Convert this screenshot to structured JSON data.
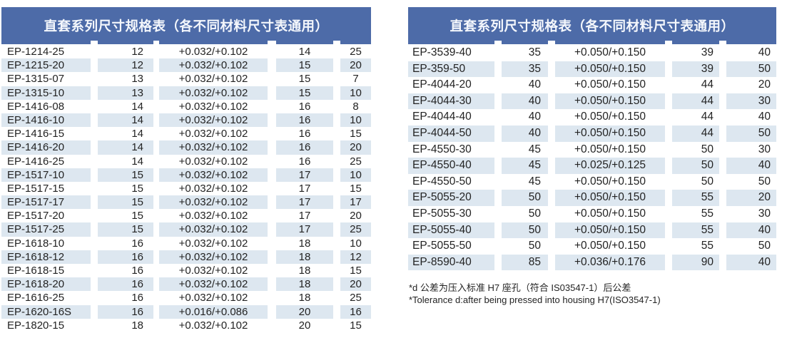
{
  "colors": {
    "header_bg": "#4d6ba8",
    "header_text": "#f4f7fc",
    "row_alt_bg": "#dde7f0",
    "row_bg": "#ffffff",
    "body_text": "#232323"
  },
  "left_table": {
    "title": "直套系列尺寸规格表（各不同材料尺寸表通用）",
    "rows": [
      [
        "EP-1214-25",
        "12",
        "+0.032/+0.102",
        "14",
        "25"
      ],
      [
        "EP-1215-20",
        "12",
        "+0.032/+0.102",
        "15",
        "20"
      ],
      [
        "EP-1315-07",
        "13",
        "+0.032/+0.102",
        "15",
        "7"
      ],
      [
        "EP-1315-10",
        "13",
        "+0.032/+0.102",
        "15",
        "10"
      ],
      [
        "EP-1416-08",
        "14",
        "+0.032/+0.102",
        "16",
        "8"
      ],
      [
        "EP-1416-10",
        "14",
        "+0.032/+0.102",
        "16",
        "10"
      ],
      [
        "EP-1416-15",
        "14",
        "+0.032/+0.102",
        "16",
        "15"
      ],
      [
        "EP-1416-20",
        "14",
        "+0.032/+0.102",
        "16",
        "20"
      ],
      [
        "EP-1416-25",
        "14",
        "+0.032/+0.102",
        "16",
        "25"
      ],
      [
        "EP-1517-10",
        "15",
        "+0.032/+0.102",
        "17",
        "10"
      ],
      [
        "EP-1517-15",
        "15",
        "+0.032/+0.102",
        "17",
        "15"
      ],
      [
        "EP-1517-17",
        "15",
        "+0.032/+0.102",
        "17",
        "17"
      ],
      [
        "EP-1517-20",
        "15",
        "+0.032/+0.102",
        "17",
        "20"
      ],
      [
        "EP-1517-25",
        "15",
        "+0.032/+0.102",
        "17",
        "25"
      ],
      [
        "EP-1618-10",
        "16",
        "+0.032/+0.102",
        "18",
        "10"
      ],
      [
        "EP-1618-12",
        "16",
        "+0.032/+0.102",
        "18",
        "12"
      ],
      [
        "EP-1618-15",
        "16",
        "+0.032/+0.102",
        "18",
        "15"
      ],
      [
        "EP-1618-20",
        "16",
        "+0.032/+0.102",
        "18",
        "20"
      ],
      [
        "EP-1616-25",
        "16",
        "+0.032/+0.102",
        "18",
        "25"
      ],
      [
        "EP-1620-16S",
        "16",
        "+0.016/+0.086",
        "20",
        "16"
      ],
      [
        "EP-1820-15",
        "18",
        "+0.032/+0.102",
        "20",
        "15"
      ]
    ]
  },
  "right_table": {
    "title": "直套系列尺寸规格表（各不同材料尺寸表通用）",
    "rows": [
      [
        "EP-3539-40",
        "35",
        "+0.050/+0.150",
        "39",
        "40"
      ],
      [
        "EP-359-50",
        "35",
        "+0.050/+0.150",
        "39",
        "50"
      ],
      [
        "EP-4044-20",
        "40",
        "+0.050/+0.150",
        "44",
        "20"
      ],
      [
        "EP-4044-30",
        "40",
        "+0.050/+0.150",
        "44",
        "30"
      ],
      [
        "EP-4044-40",
        "40",
        "+0.050/+0.150",
        "44",
        "40"
      ],
      [
        "EP-4044-50",
        "40",
        "+0.050/+0.150",
        "44",
        "50"
      ],
      [
        "EP-4550-30",
        "45",
        "+0.050/+0.150",
        "50",
        "30"
      ],
      [
        "EP-4550-40",
        "45",
        "+0.025/+0.125",
        "50",
        "40"
      ],
      [
        "EP-4550-50",
        "45",
        "+0.050/+0.150",
        "50",
        "50"
      ],
      [
        "EP-5055-20",
        "50",
        "+0.050/+0.150",
        "55",
        "20"
      ],
      [
        "EP-5055-30",
        "50",
        "+0.050/+0.150",
        "55",
        "30"
      ],
      [
        "EP-5055-40",
        "50",
        "+0.050/+0.150",
        "55",
        "40"
      ],
      [
        "EP-5055-50",
        "50",
        "+0.050/+0.150",
        "55",
        "50"
      ],
      [
        "EP-8590-40",
        "85",
        "+0.036/+0.176",
        "90",
        "40"
      ]
    ]
  },
  "footnotes": {
    "zh": "*d 公差为压入标准 H7 座孔（符合 IS03547-1）后公差",
    "en": "*Tolerance d:after being pressed into housing H7(ISO3547-1)"
  }
}
